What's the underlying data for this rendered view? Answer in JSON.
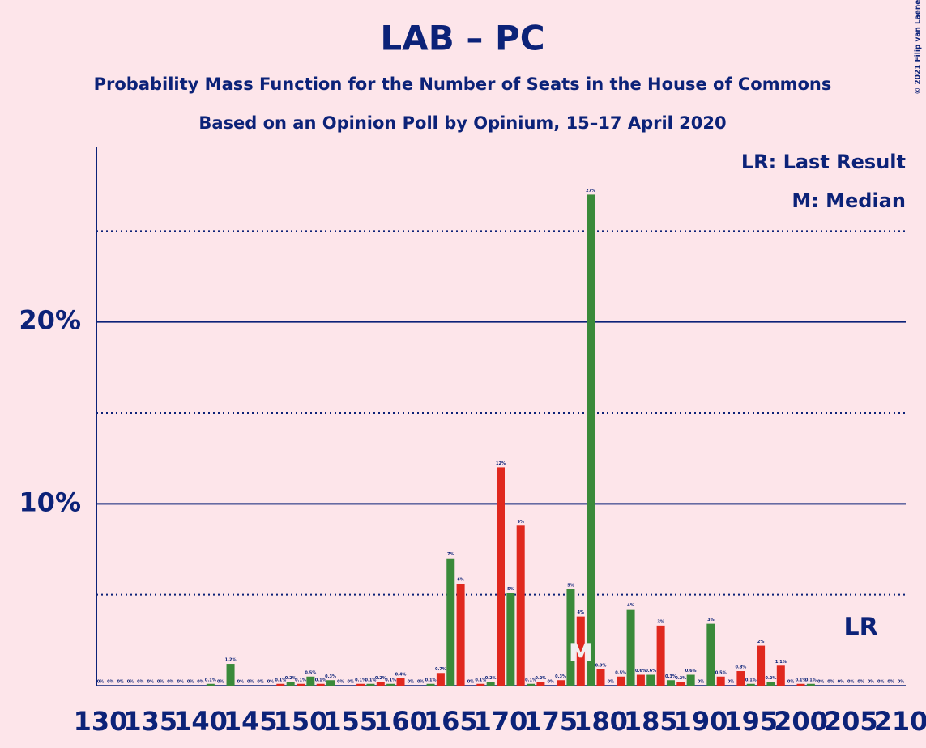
{
  "chart_data": {
    "type": "bar",
    "title": "LAB – PC",
    "subtitle": "Probability Mass Function for the Number of Seats in the House of Commons",
    "subtitle2": "Based on an Opinion Poll by Opinium, 15–17 April 2020",
    "copyright": "© 2021 Filip van Laenen",
    "legend_lr": "LR: Last Result",
    "legend_m": "M: Median",
    "median_label": "M",
    "last_result_label": "LR",
    "median": 178,
    "last_result": 206,
    "x": [
      130,
      131,
      132,
      133,
      134,
      135,
      136,
      137,
      138,
      139,
      140,
      141,
      142,
      143,
      144,
      145,
      146,
      147,
      148,
      149,
      150,
      151,
      152,
      153,
      154,
      155,
      156,
      157,
      158,
      159,
      160,
      161,
      162,
      163,
      164,
      165,
      166,
      167,
      168,
      169,
      170,
      171,
      172,
      173,
      174,
      175,
      176,
      177,
      178,
      179,
      180,
      181,
      182,
      183,
      184,
      185,
      186,
      187,
      188,
      189,
      190,
      191,
      192,
      193,
      194,
      195,
      196,
      197,
      198,
      199,
      200,
      201,
      202,
      203,
      204,
      205,
      206,
      207,
      208,
      209,
      210
    ],
    "values": [
      0,
      0,
      0,
      0,
      0,
      0,
      0,
      0,
      0,
      0,
      0,
      0.1,
      0,
      1.2,
      0,
      0,
      0,
      0,
      0.1,
      0.2,
      0.1,
      0.5,
      0.1,
      0.3,
      0,
      0,
      0.1,
      0.1,
      0.2,
      0.1,
      0.4,
      0,
      0,
      0.1,
      0.7,
      7.0,
      5.6,
      0,
      0.1,
      0.2,
      12.0,
      5.1,
      8.8,
      0.1,
      0.2,
      0,
      0.3,
      5.3,
      3.8,
      27.0,
      0.9,
      0,
      0.5,
      4.2,
      0.6,
      0.6,
      3.3,
      0.3,
      0.2,
      0.6,
      0,
      3.4,
      0.5,
      0,
      0.8,
      0.1,
      2.2,
      0.2,
      1.1,
      0,
      0.1,
      0.1,
      0,
      0,
      0,
      0,
      0,
      0,
      0,
      0,
      0
    ],
    "value_labels": [
      "0%",
      "0%",
      "0%",
      "0%",
      "0%",
      "0%",
      "0%",
      "0%",
      "0%",
      "0%",
      "0%",
      "0.1%",
      "0%",
      "1.2%",
      "0%",
      "0%",
      "0%",
      "0%",
      "0.1%",
      "0.2%",
      "0.1%",
      "0.5%",
      "0.1%",
      "0.3%",
      "0%",
      "0%",
      "0.1%",
      "0.1%",
      "0.2%",
      "0.1%",
      "0.4%",
      "0%",
      "0%",
      "0.1%",
      "0.7%",
      "7%",
      "6%",
      "0%",
      "0.1%",
      "0.2%",
      "12%",
      "5%",
      "9%",
      "0.1%",
      "0.2%",
      "0%",
      "0.3%",
      "5%",
      "4%",
      "27%",
      "0.9%",
      "0%",
      "0.5%",
      "4%",
      "0.6%",
      "0.6%",
      "3%",
      "0.3%",
      "0.2%",
      "0.6%",
      "0%",
      "3%",
      "0.5%",
      "0%",
      "0.8%",
      "0.1%",
      "2%",
      "0.2%",
      "1.1%",
      "0%",
      "0.1%",
      "0.1%",
      "0%",
      "0%",
      "0%",
      "0%",
      "0%",
      "0%",
      "0%",
      "0%",
      "0%"
    ],
    "colors": [
      "#e0281e",
      "#3a8a3a"
    ],
    "xlim": [
      129.6,
      210.4
    ],
    "xticks": [
      130,
      135,
      140,
      145,
      150,
      155,
      160,
      165,
      170,
      175,
      180,
      185,
      190,
      195,
      200,
      205,
      210
    ],
    "ylim": [
      0,
      29.6
    ],
    "yticks": [
      {
        "value": 10,
        "label": "10%"
      },
      {
        "value": 20,
        "label": "20%"
      }
    ],
    "minor_yticks": [
      5,
      15,
      25
    ]
  }
}
